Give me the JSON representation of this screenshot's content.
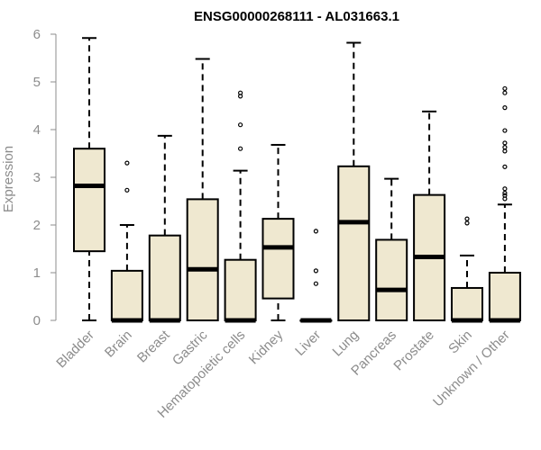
{
  "chart_data": {
    "type": "boxplot",
    "title": "ENSG00000268111 - AL031663.1",
    "xlabel": "",
    "ylabel": "Expression",
    "ylim": [
      0,
      6
    ],
    "yticks": [
      0,
      1,
      2,
      3,
      4,
      5,
      6
    ],
    "box_fill": "#efe8d0",
    "box_stroke": "#000000",
    "axis_color": "#8c8c8c",
    "categories": [
      "Bladder",
      "Brain",
      "Breast",
      "Gastric",
      "Hematopoietic cells",
      "Kidney",
      "Liver",
      "Lung",
      "Pancreas",
      "Prostate",
      "Skin",
      "Unknown / Other"
    ],
    "boxes": [
      {
        "category": "Bladder",
        "whisker_low": 0,
        "q1": 1.45,
        "median": 2.82,
        "q3": 3.6,
        "whisker_high": 5.92,
        "outliers": []
      },
      {
        "category": "Brain",
        "whisker_low": 0,
        "q1": 0,
        "median": 0,
        "q3": 1.04,
        "whisker_high": 2.0,
        "outliers": [
          2.73,
          3.3
        ]
      },
      {
        "category": "Breast",
        "whisker_low": 0,
        "q1": 0,
        "median": 0,
        "q3": 1.78,
        "whisker_high": 3.87,
        "outliers": []
      },
      {
        "category": "Gastric",
        "whisker_low": 0,
        "q1": 0,
        "median": 1.07,
        "q3": 2.54,
        "whisker_high": 5.48,
        "outliers": []
      },
      {
        "category": "Hematopoietic cells",
        "whisker_low": 0,
        "q1": 0,
        "median": 0,
        "q3": 1.27,
        "whisker_high": 3.14,
        "outliers": [
          3.6,
          4.1,
          4.7,
          4.77
        ]
      },
      {
        "category": "Kidney",
        "whisker_low": 0,
        "q1": 0.46,
        "median": 1.53,
        "q3": 2.13,
        "whisker_high": 3.68,
        "outliers": []
      },
      {
        "category": "Liver",
        "whisker_low": 0,
        "q1": 0,
        "median": 0,
        "q3": 0,
        "whisker_high": 0,
        "outliers": [
          0.77,
          1.04,
          1.87
        ]
      },
      {
        "category": "Lung",
        "whisker_low": 0,
        "q1": 0,
        "median": 2.06,
        "q3": 3.23,
        "whisker_high": 5.82,
        "outliers": []
      },
      {
        "category": "Pancreas",
        "whisker_low": 0,
        "q1": 0,
        "median": 0.64,
        "q3": 1.69,
        "whisker_high": 2.97,
        "outliers": []
      },
      {
        "category": "Prostate",
        "whisker_low": 0,
        "q1": 0,
        "median": 1.33,
        "q3": 2.63,
        "whisker_high": 4.38,
        "outliers": []
      },
      {
        "category": "Skin",
        "whisker_low": 0,
        "q1": 0,
        "median": 0,
        "q3": 0.68,
        "whisker_high": 1.36,
        "outliers": [
          2.04,
          2.13
        ]
      },
      {
        "category": "Unknown / Other",
        "whisker_low": 0,
        "q1": 0,
        "median": 0,
        "q3": 1.0,
        "whisker_high": 2.43,
        "outliers": [
          2.55,
          2.62,
          2.67,
          2.76,
          3.22,
          3.55,
          3.63,
          3.72,
          3.98,
          4.46,
          4.77,
          4.86
        ]
      }
    ]
  }
}
